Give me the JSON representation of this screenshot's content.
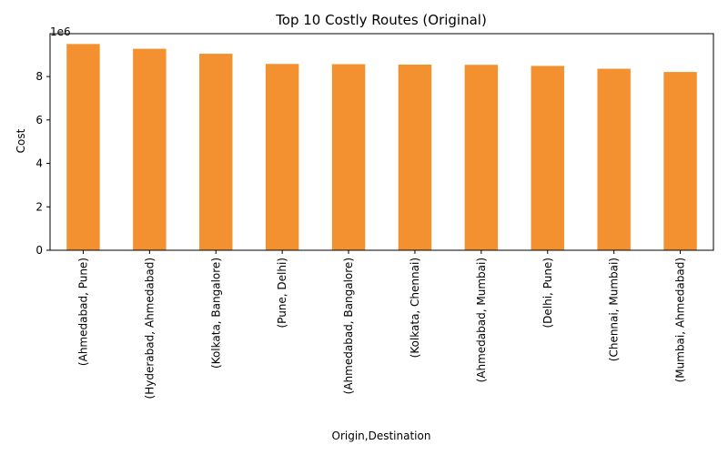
{
  "chart_data": {
    "type": "bar",
    "title": "Top 10 Costly Routes (Original)",
    "xlabel": "Origin,Destination",
    "ylabel": "Cost",
    "y_offset_label": "1e6",
    "y_multiplier": 1000000,
    "ylim": [
      0,
      9.975
    ],
    "yticks": [
      0,
      2,
      4,
      6,
      8
    ],
    "grid": false,
    "legend": "none",
    "bar_color": "#f39130",
    "categories": [
      "(Ahmedabad, Pune)",
      "(Hyderabad, Ahmedabad)",
      "(Kolkata, Bangalore)",
      "(Pune, Delhi)",
      "(Ahmedabad, Bangalore)",
      "(Kolkata, Chennai)",
      "(Ahmedabad, Mumbai)",
      "(Delhi, Pune)",
      "(Chennai, Mumbai)",
      "(Mumbai, Ahmedabad)"
    ],
    "values": [
      9.5,
      9.28,
      9.05,
      8.58,
      8.57,
      8.55,
      8.54,
      8.49,
      8.36,
      8.21
    ]
  }
}
